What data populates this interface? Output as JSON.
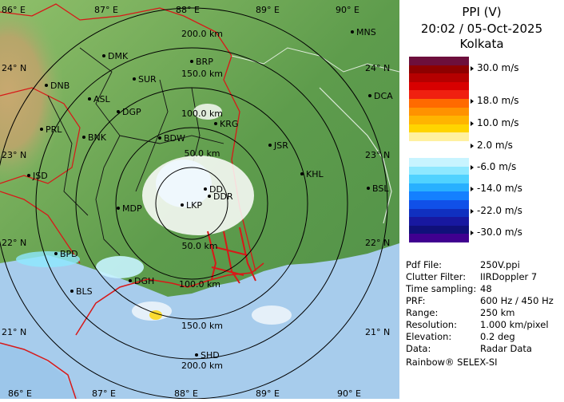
{
  "header": {
    "product": "PPI (V)",
    "datetime": "20:02 / 05-Oct-2025",
    "station": "Kolkata"
  },
  "legend": {
    "unit_labels": [
      "30.0 m/s",
      "18.0 m/s",
      "10.0 m/s",
      "2.0 m/s",
      "-6.0 m/s",
      "-14.0 m/s",
      "-22.0 m/s",
      "-30.0 m/s"
    ],
    "colors": [
      "#6d0f3c",
      "#8e0000",
      "#b50000",
      "#d80000",
      "#f02010",
      "#ff6a00",
      "#ff9200",
      "#ffb400",
      "#ffd400",
      "#fff0a0",
      "#ffffff",
      "#ffffff",
      "#c8f4ff",
      "#8ee8ff",
      "#50d2ff",
      "#28b0ff",
      "#1480ff",
      "#1050e8",
      "#1030c0",
      "#1818a0",
      "#10107a",
      "#400090"
    ]
  },
  "meta": [
    {
      "key": "Pdf File:",
      "value": "250V.ppi"
    },
    {
      "key": "Clutter Filter:",
      "value": "IIRDoppler 7"
    },
    {
      "key": "Time sampling:",
      "value": "48"
    },
    {
      "key": "PRF:",
      "value": "600 Hz / 450 Hz"
    },
    {
      "key": "Range:",
      "value": "250 km"
    },
    {
      "key": "Resolution:",
      "value": "1.000 km/pixel"
    },
    {
      "key": "Elevation:",
      "value": "0.2 deg"
    },
    {
      "key": "Data:",
      "value": "Radar Data"
    }
  ],
  "footer": "Rainbow® SELEX-SI",
  "map": {
    "lon_labels_top": [
      "86° E",
      "87° E",
      "88° E",
      "89° E",
      "90° E"
    ],
    "lon_labels_bottom": [
      "86° E",
      "87° E",
      "88° E",
      "89° E",
      "90° E"
    ],
    "lat_labels_left": [
      "24° N",
      "23° N",
      "22° N",
      "21° N"
    ],
    "lat_labels_right": [
      "24° N",
      "23° N",
      "22° N",
      "21° N"
    ],
    "range_labels_north": [
      "200.0 km",
      "150.0 km",
      "100.0 km",
      "50.0 km"
    ],
    "range_labels_south": [
      "50.0 km",
      "100.0 km",
      "150.0 km",
      "200.0 km"
    ],
    "cities": [
      "MNS",
      "DMK",
      "BRP",
      "DNB",
      "SUR",
      "ASL",
      "DGP",
      "DCA",
      "PRL",
      "BNK",
      "KRG",
      "BDW",
      "JSR",
      "KHL",
      "JSD",
      "DD",
      "DDR",
      "MDP",
      "LKP",
      "BSL",
      "BPD",
      "DGH",
      "BLS",
      "SHD"
    ]
  }
}
